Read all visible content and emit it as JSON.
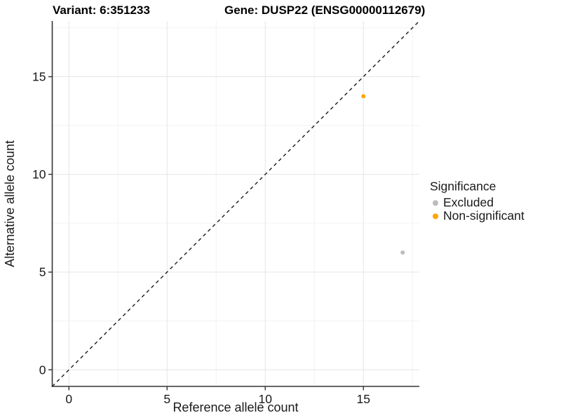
{
  "header": {
    "variant_title": "Variant: 6:351233",
    "gene_title": "Gene: DUSP22 (ENSG00000112679)"
  },
  "chart_data": {
    "type": "scatter",
    "title": "Variant: 6:351233  Gene: DUSP22 (ENSG00000112679)",
    "xlabel": "Reference allele count",
    "ylabel": "Alternative allele count",
    "xlim": [
      -0.85,
      17.85
    ],
    "ylim": [
      -0.85,
      17.85
    ],
    "x_major_ticks": [
      0,
      5,
      10,
      15
    ],
    "y_major_ticks": [
      0,
      5,
      10,
      15
    ],
    "x_minor_ticks": [
      2.5,
      7.5,
      12.5,
      17.5
    ],
    "y_minor_ticks": [
      2.5,
      7.5,
      12.5,
      17.5
    ],
    "grid": "major+minor",
    "identity_line": {
      "slope": 1,
      "intercept": 0,
      "style": "dashed",
      "color": "#1a1a1a"
    },
    "series": [
      {
        "name": "Excluded",
        "color": "#bdbdbd",
        "points": [
          [
            17,
            6
          ]
        ]
      },
      {
        "name": "Non-significant",
        "color": "#ffa500",
        "points": [
          [
            15,
            14
          ]
        ]
      }
    ],
    "legend": {
      "title": "Significance",
      "position": "right"
    },
    "colors": {
      "grid_major": "#e5e5e5",
      "grid_minor": "#f2f2f2",
      "axis_line": "#333333",
      "tick_text": "#1a1a1a",
      "background": "#ffffff"
    },
    "point_radius": 3,
    "tick_font_size": 17.5
  }
}
